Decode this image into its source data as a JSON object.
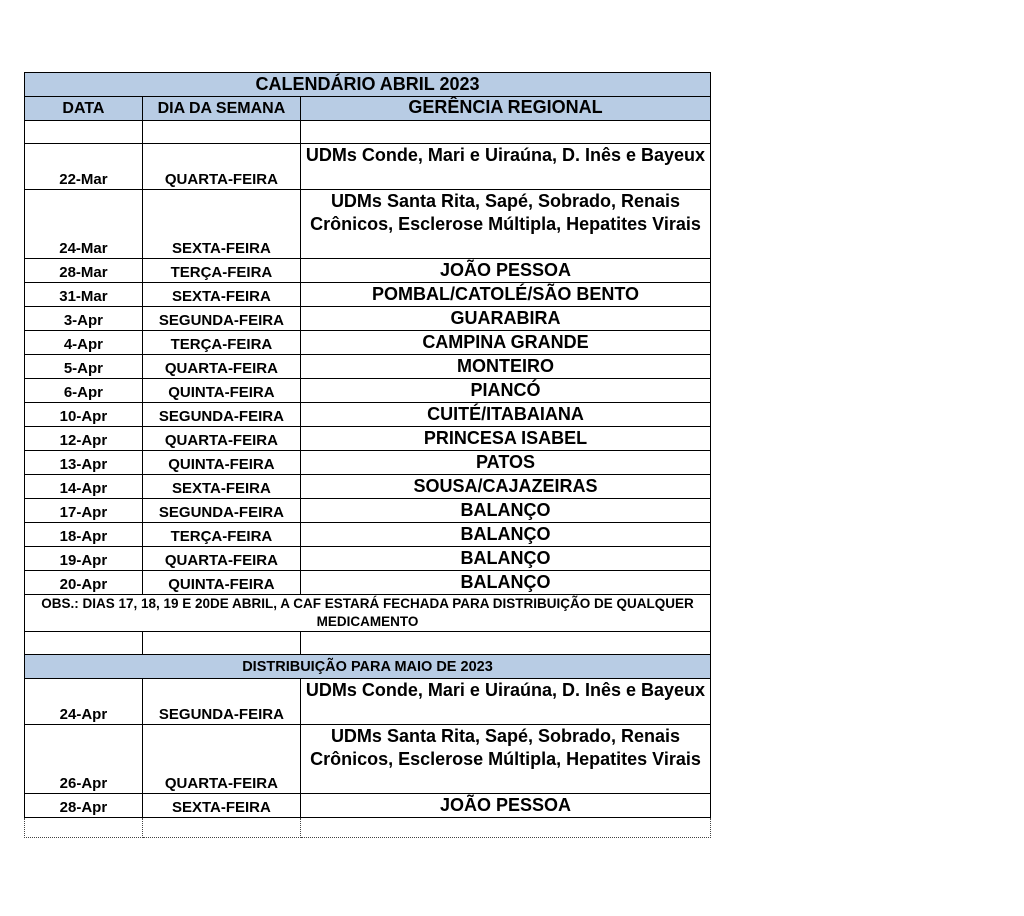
{
  "title": "CALENDÁRIO ABRIL 2023",
  "headers": {
    "date": "DATA",
    "day": "DIA DA SEMANA",
    "region": "GERÊNCIA REGIONAL"
  },
  "april_rows": [
    {
      "date": "22-Mar",
      "day": "QUARTA-FEIRA",
      "region": "UDMs Conde, Mari e Uiraúna, D. Inês e Bayeux",
      "lines": 2
    },
    {
      "date": "24-Mar",
      "day": "SEXTA-FEIRA",
      "region": "UDMs Santa Rita, Sapé, Sobrado, Renais Crônicos, Esclerose Múltipla, Hepatites Virais",
      "lines": 3
    },
    {
      "date": "28-Mar",
      "day": "TERÇA-FEIRA",
      "region": "JOÃO PESSOA",
      "lines": 1
    },
    {
      "date": "31-Mar",
      "day": "SEXTA-FEIRA",
      "region": "POMBAL/CATOLÉ/SÃO BENTO",
      "lines": 1
    },
    {
      "date": "3-Apr",
      "day": "SEGUNDA-FEIRA",
      "region": "GUARABIRA",
      "lines": 1
    },
    {
      "date": "4-Apr",
      "day": "TERÇA-FEIRA",
      "region": "CAMPINA GRANDE",
      "lines": 1
    },
    {
      "date": "5-Apr",
      "day": "QUARTA-FEIRA",
      "region": "MONTEIRO",
      "lines": 1
    },
    {
      "date": "6-Apr",
      "day": "QUINTA-FEIRA",
      "region": "PIANCÓ",
      "lines": 1
    },
    {
      "date": "10-Apr",
      "day": "SEGUNDA-FEIRA",
      "region": "CUITÉ/ITABAIANA",
      "lines": 1
    },
    {
      "date": "12-Apr",
      "day": "QUARTA-FEIRA",
      "region": "PRINCESA ISABEL",
      "lines": 1
    },
    {
      "date": "13-Apr",
      "day": "QUINTA-FEIRA",
      "region": "PATOS",
      "lines": 1
    },
    {
      "date": "14-Apr",
      "day": "SEXTA-FEIRA",
      "region": "SOUSA/CAJAZEIRAS",
      "lines": 1
    },
    {
      "date": "17-Apr",
      "day": "SEGUNDA-FEIRA",
      "region": "BALANÇO",
      "lines": 1
    },
    {
      "date": "18-Apr",
      "day": "TERÇA-FEIRA",
      "region": "BALANÇO",
      "lines": 1
    },
    {
      "date": "19-Apr",
      "day": "QUARTA-FEIRA",
      "region": "BALANÇO",
      "lines": 1
    },
    {
      "date": "20-Apr",
      "day": "QUINTA-FEIRA",
      "region": "BALANÇO",
      "lines": 1
    }
  ],
  "obs": "OBS.: DIAS 17, 18, 19 E 20DE ABRIL, A CAF ESTARÁ FECHADA PARA DISTRIBUIÇÃO DE QUALQUER MEDICAMENTO",
  "may_title": "DISTRIBUIÇÃO PARA MAIO DE 2023",
  "may_rows": [
    {
      "date": "24-Apr",
      "day": "SEGUNDA-FEIRA",
      "region": "UDMs Conde, Mari e Uiraúna, D. Inês e Bayeux",
      "lines": 2
    },
    {
      "date": "26-Apr",
      "day": "QUARTA-FEIRA",
      "region": "UDMs Santa Rita, Sapé, Sobrado, Renais Crônicos, Esclerose Múltipla, Hepatites Virais",
      "lines": 3
    },
    {
      "date": "28-Apr",
      "day": "SEXTA-FEIRA",
      "region": "JOÃO PESSOA",
      "lines": 1
    }
  ],
  "colors": {
    "header_fill": "#b8cce4"
  }
}
